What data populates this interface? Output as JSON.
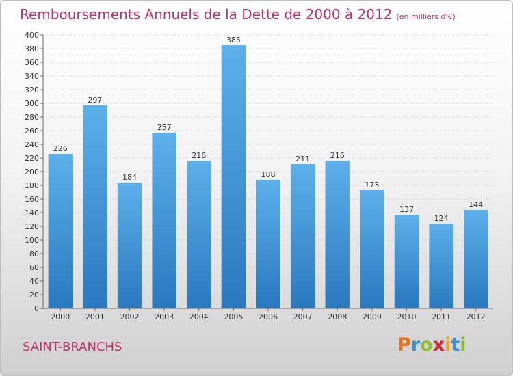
{
  "title": "Remboursements Annuels de la Dette de 2000 à 2012",
  "subtitle": "(en milliers d'€)",
  "city": "SAINT-BRANCHS",
  "logo": {
    "letters": [
      "P",
      "r",
      "o",
      "x",
      "i",
      "t",
      "i"
    ],
    "colors": [
      "#e8731a",
      "#3a8fd0",
      "#8bbf2e",
      "#d6232e",
      "#e8a51a",
      "#3a8fd0",
      "#8bbf2e"
    ]
  },
  "colors": {
    "bar_light": "#5db0ea",
    "bar_dark": "#2a78bf",
    "title": "#c0306a"
  },
  "chart_data": {
    "type": "bar",
    "categories": [
      "2000",
      "2001",
      "2002",
      "2003",
      "2004",
      "2005",
      "2006",
      "2007",
      "2008",
      "2009",
      "2010",
      "2011",
      "2012"
    ],
    "values": [
      226,
      297,
      184,
      257,
      216,
      385,
      188,
      211,
      216,
      173,
      137,
      124,
      144
    ],
    "ylim": [
      0,
      400
    ],
    "ytick_step": 20,
    "grid": true
  }
}
